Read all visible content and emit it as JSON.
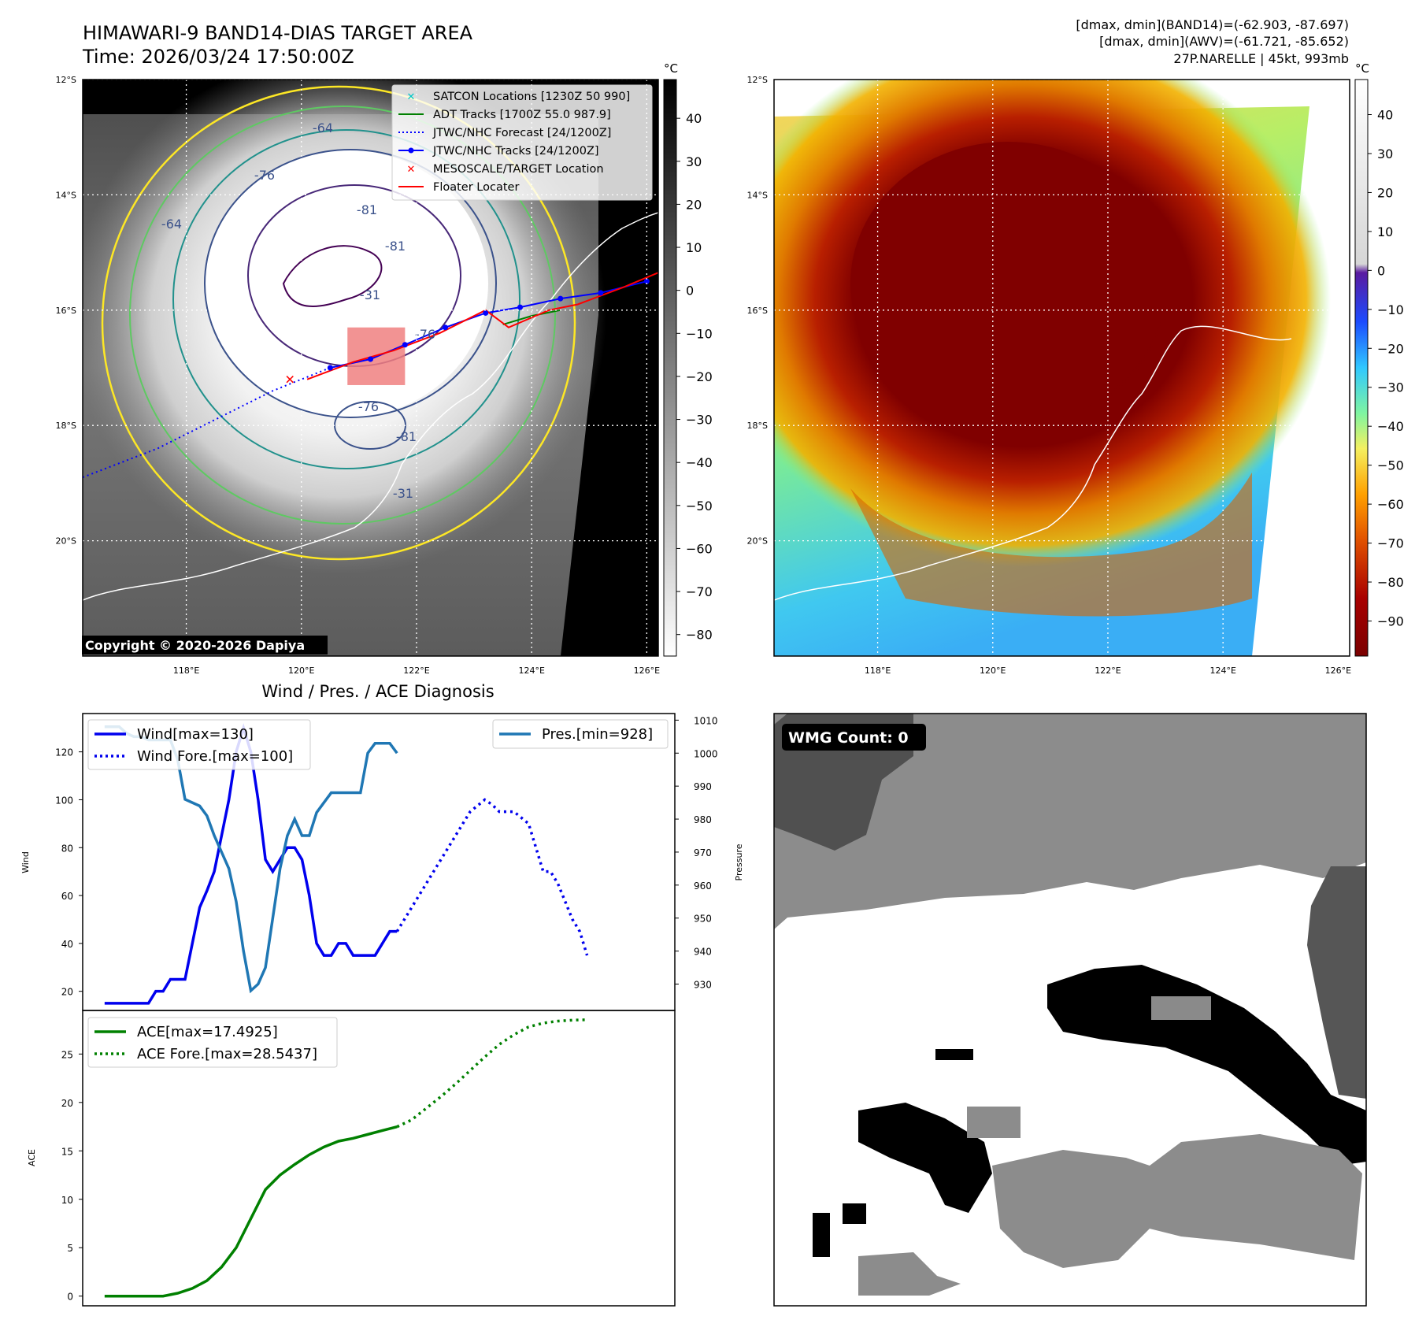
{
  "header": {
    "title_line1": "HIMAWARI-9 BAND14-DIAS TARGET AREA",
    "title_line2": "Time: 2026/03/24 17:50:00Z",
    "info_line1": "[dmax, dmin](BAND14)=(-62.903, -87.697)",
    "info_line2": "[dmax, dmin](AWV)=(-61.721, -85.652)",
    "info_line3": "27P.NARELLE | 45kt, 993mb"
  },
  "map": {
    "lat_labels": [
      "12°S",
      "14°S",
      "16°S",
      "18°S",
      "20°S"
    ],
    "lat_values": [
      -12,
      -14,
      -16,
      -18,
      -20
    ],
    "lon_labels": [
      "118°E",
      "120°E",
      "122°E",
      "124°E",
      "126°E"
    ],
    "lon_values": [
      118,
      120,
      122,
      124,
      126
    ],
    "extent": {
      "lon_min": 116.2,
      "lon_max": 126.2,
      "lat_min": -22.0,
      "lat_max": -12.0
    },
    "copyright": "Copyright © 2020-2026 Dapiya",
    "contour_labels": [
      "-64",
      "-76",
      "-81",
      "-64",
      "-76",
      "-81",
      "-76",
      "-81",
      "-31",
      "-31"
    ],
    "legend": [
      {
        "label": "SATCON Locations [1230Z 50 990]",
        "color": "#00c8c8",
        "marker": "x"
      },
      {
        "label": "ADT Tracks [1700Z 55.0 987.9]",
        "color": "#008000",
        "marker": "line"
      },
      {
        "label": "JTWC/NHC Forecast [24/1200Z]",
        "color": "#0000ff",
        "marker": "dotted"
      },
      {
        "label": "JTWC/NHC Tracks [24/1200Z]",
        "color": "#0000ff",
        "marker": "line-dot"
      },
      {
        "label": "MESOSCALE/TARGET Location",
        "color": "#ff0000",
        "marker": "x"
      },
      {
        "label": "Floater Locater",
        "color": "#ff0000",
        "marker": "line"
      }
    ],
    "jtwc_track": [
      [
        126.0,
        -15.5
      ],
      [
        125.2,
        -15.7
      ],
      [
        124.5,
        -15.8
      ],
      [
        123.8,
        -15.95
      ],
      [
        123.2,
        -16.05
      ],
      [
        122.5,
        -16.3
      ],
      [
        121.8,
        -16.6
      ],
      [
        121.2,
        -16.85
      ],
      [
        120.5,
        -17.0
      ]
    ],
    "jtwc_forecast": [
      [
        120.5,
        -17.0
      ],
      [
        119.5,
        -17.4
      ],
      [
        118.5,
        -17.9
      ],
      [
        117.5,
        -18.4
      ],
      [
        116.2,
        -18.9
      ]
    ],
    "adt_track": [
      [
        124.5,
        -16.0
      ],
      [
        124.0,
        -16.1
      ],
      [
        123.5,
        -16.25
      ]
    ],
    "floater_track": [
      [
        126.2,
        -15.35
      ],
      [
        125.6,
        -15.6
      ],
      [
        124.8,
        -15.9
      ],
      [
        124.3,
        -16.0
      ],
      [
        123.6,
        -16.3
      ],
      [
        123.2,
        -16.0
      ],
      [
        122.4,
        -16.4
      ],
      [
        121.6,
        -16.7
      ],
      [
        120.9,
        -16.9
      ],
      [
        120.1,
        -17.2
      ]
    ],
    "target_location": [
      119.8,
      -17.2
    ],
    "mesoscale_box": {
      "lon_min": 120.8,
      "lon_max": 121.8,
      "lat_min": -17.3,
      "lat_max": -16.3
    }
  },
  "colorbar_left": {
    "unit": "°C",
    "ticks": [
      "40",
      "30",
      "20",
      "10",
      "0",
      "−10",
      "−20",
      "−30",
      "−40",
      "−50",
      "−60",
      "−70",
      "−80"
    ],
    "values": [
      40,
      30,
      20,
      10,
      0,
      -10,
      -20,
      -30,
      -40,
      -50,
      -60,
      -70,
      -80
    ],
    "min": -85,
    "max": 49
  },
  "colorbar_right": {
    "unit": "°C",
    "ticks": [
      "40",
      "30",
      "20",
      "10",
      "0",
      "−10",
      "−20",
      "−30",
      "−40",
      "−50",
      "−60",
      "−70",
      "−80",
      "−90"
    ],
    "values": [
      40,
      30,
      20,
      10,
      0,
      -10,
      -20,
      -30,
      -40,
      -50,
      -60,
      -70,
      -80,
      -90
    ],
    "min": -99,
    "max": 49
  },
  "chart_data": [
    {
      "type": "line",
      "title": "Wind / Pres. / ACE Diagnosis",
      "xlabel": "",
      "ylabel": "Wind",
      "y2label": "Pressure",
      "ylim": [
        12,
        136
      ],
      "y2lim": [
        922,
        1012
      ],
      "xlim": [
        -3,
        78
      ],
      "yticks": [
        20,
        40,
        60,
        80,
        100,
        120
      ],
      "y2ticks": [
        930,
        940,
        950,
        960,
        970,
        980,
        990,
        1000,
        1010
      ],
      "series": [
        {
          "name": "Wind[max=130]",
          "axis": "left",
          "color": "#0000ee",
          "style": "solid",
          "x": [
            0,
            2,
            4,
            6,
            7,
            8,
            9,
            10,
            11,
            12,
            13,
            14,
            15,
            16,
            17,
            18,
            19,
            20,
            21,
            22,
            23,
            24,
            25,
            26,
            27,
            28,
            29,
            30,
            31,
            32,
            33,
            34,
            35,
            36,
            37,
            38,
            39,
            40
          ],
          "y": [
            15,
            15,
            15,
            15,
            20,
            20,
            25,
            25,
            25,
            40,
            55,
            62,
            70,
            85,
            100,
            120,
            130,
            120,
            100,
            75,
            70,
            75,
            80,
            80,
            75,
            60,
            40,
            35,
            35,
            40,
            40,
            35,
            35,
            35,
            35,
            40,
            45,
            45
          ]
        },
        {
          "name": "Wind Fore.[max=100]",
          "axis": "left",
          "color": "#0000ee",
          "style": "dotted",
          "x": [
            40,
            42,
            44,
            46,
            48,
            50,
            52,
            53,
            54,
            56,
            58,
            59,
            60,
            61,
            62,
            64,
            65,
            66
          ],
          "y": [
            45,
            55,
            65,
            75,
            85,
            95,
            100,
            98,
            95,
            95,
            90,
            80,
            70,
            70,
            65,
            50,
            45,
            35
          ]
        }
      ],
      "series_right": [
        {
          "name": "Pres.[min=928]",
          "axis": "right",
          "color": "#1f77b4",
          "style": "solid",
          "x": [
            0,
            2,
            3,
            4,
            5,
            6,
            7,
            8,
            9,
            10,
            11,
            12,
            13,
            14,
            15,
            16,
            17,
            18,
            19,
            20,
            21,
            22,
            23,
            24,
            25,
            26,
            27,
            28,
            29,
            30,
            31,
            32,
            33,
            34,
            35,
            36,
            37,
            38,
            39,
            40
          ],
          "y": [
            1008,
            1008,
            1006,
            1005,
            1005,
            1004,
            1004,
            1004,
            1004,
            998,
            986,
            985,
            984,
            981,
            975,
            970,
            965,
            955,
            940,
            928,
            930,
            935,
            950,
            965,
            975,
            980,
            975,
            975,
            982,
            985,
            988,
            988,
            988,
            988,
            988,
            1000,
            1003,
            1003,
            1003,
            1000
          ]
        }
      ],
      "legend_left": [
        "Wind[max=130]",
        "Wind Fore.[max=100]"
      ],
      "legend_right": [
        "Pres.[min=928]"
      ]
    },
    {
      "type": "line",
      "ylabel": "ACE",
      "ylim": [
        -1,
        29.5
      ],
      "xlim": [
        -3,
        78
      ],
      "yticks": [
        0,
        5,
        10,
        15,
        20,
        25
      ],
      "series": [
        {
          "name": "ACE[max=17.4925]",
          "color": "#008000",
          "style": "solid",
          "x": [
            0,
            2,
            4,
            6,
            8,
            10,
            12,
            14,
            16,
            18,
            20,
            22,
            24,
            26,
            28,
            30,
            32,
            34,
            36,
            38,
            40
          ],
          "y": [
            0,
            0,
            0,
            0,
            0,
            0.3,
            0.8,
            1.6,
            3,
            5,
            8,
            11,
            12.5,
            13.6,
            14.6,
            15.4,
            16.0,
            16.3,
            16.7,
            17.1,
            17.49
          ]
        },
        {
          "name": "ACE Fore.[max=28.5437]",
          "color": "#008000",
          "style": "dotted",
          "x": [
            40,
            42,
            44,
            46,
            48,
            50,
            52,
            54,
            56,
            58,
            60,
            62,
            64,
            66
          ],
          "y": [
            17.49,
            18.2,
            19.4,
            20.6,
            21.9,
            23.3,
            24.7,
            26.0,
            27.0,
            27.8,
            28.2,
            28.4,
            28.5,
            28.54
          ]
        }
      ],
      "legend": [
        "ACE[max=17.4925]",
        "ACE Fore.[max=28.5437]"
      ]
    }
  ],
  "wmg": {
    "label": "WMG Count: 0"
  }
}
